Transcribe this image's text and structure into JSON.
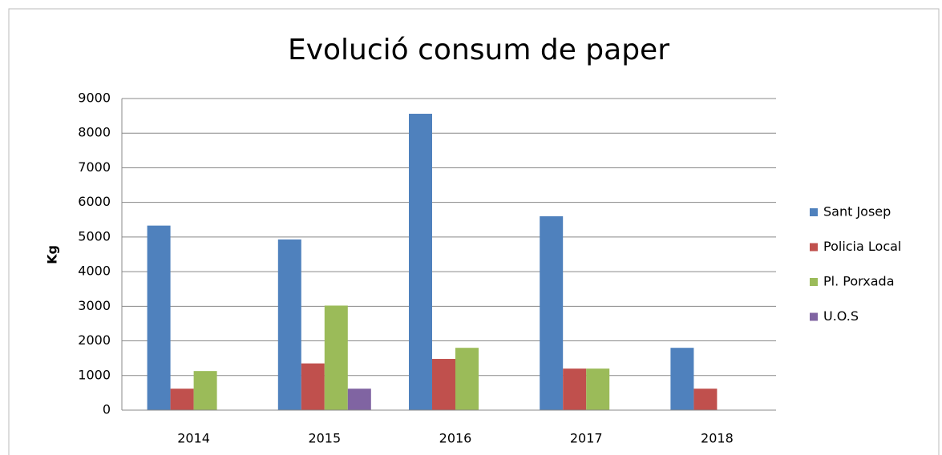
{
  "chart_data": {
    "type": "bar",
    "title": "Evolució consum de paper",
    "y_label": "Kg",
    "categories": [
      "2014",
      "2015",
      "2016",
      "2017",
      "2018"
    ],
    "series": [
      {
        "name": "Sant Josep",
        "color": "#4f81bd",
        "values": [
          5330,
          4930,
          8560,
          5600,
          1800
        ]
      },
      {
        "name": "Policia Local",
        "color": "#c0504d",
        "values": [
          620,
          1350,
          1480,
          1200,
          620
        ]
      },
      {
        "name": "Pl. Porxada",
        "color": "#9bbb59",
        "values": [
          1130,
          3020,
          1800,
          1200,
          null
        ]
      },
      {
        "name": "U.O.S",
        "color": "#8064a2",
        "values": [
          null,
          620,
          null,
          null,
          null
        ]
      }
    ],
    "ylim": [
      0,
      9000
    ],
    "yticks": [
      0,
      1000,
      2000,
      3000,
      4000,
      5000,
      6000,
      7000,
      8000,
      9000
    ],
    "grid": true,
    "legend": "right"
  }
}
